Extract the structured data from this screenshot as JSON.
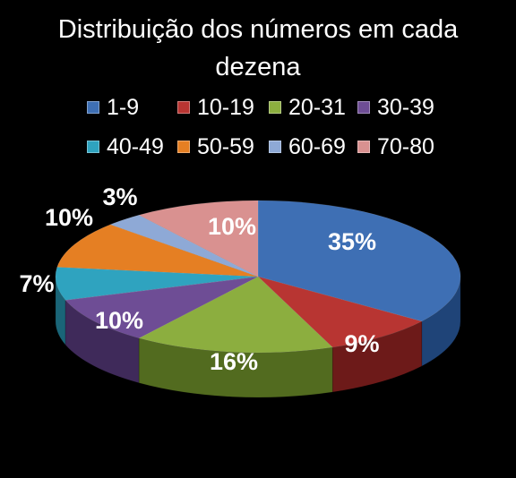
{
  "chart_data": {
    "type": "pie",
    "title": "Distribuição dos números em cada dezena",
    "title_lines": [
      "Distribuição dos números em cada",
      "dezena"
    ],
    "categories": [
      "1-9",
      "10-19",
      "20-31",
      "30-39",
      "40-49",
      "50-59",
      "60-69",
      "70-80"
    ],
    "values": [
      35,
      9,
      16,
      10,
      7,
      10,
      3,
      10
    ],
    "labels": [
      "35%",
      "9%",
      "16%",
      "10%",
      "7%",
      "10%",
      "3%",
      "10%"
    ],
    "colors": [
      "#3e6fb4",
      "#b83532",
      "#8cae3f",
      "#6e4d95",
      "#2fa3bf",
      "#e57f23",
      "#8ea9d6",
      "#d99190"
    ],
    "side_colors": [
      "#1f4478",
      "#6d1a19",
      "#526b1f",
      "#3f2a5a",
      "#1a6578",
      "#8f4c10",
      "#5671a0",
      "#9c5a59"
    ],
    "label_colors": [
      "#ffffff",
      "#ffffff",
      "#ffffff",
      "#ffffff",
      "#ffffff",
      "#ffffff",
      "#ffffff",
      "#ffffff"
    ],
    "legend_position": "top",
    "style": "3d"
  }
}
